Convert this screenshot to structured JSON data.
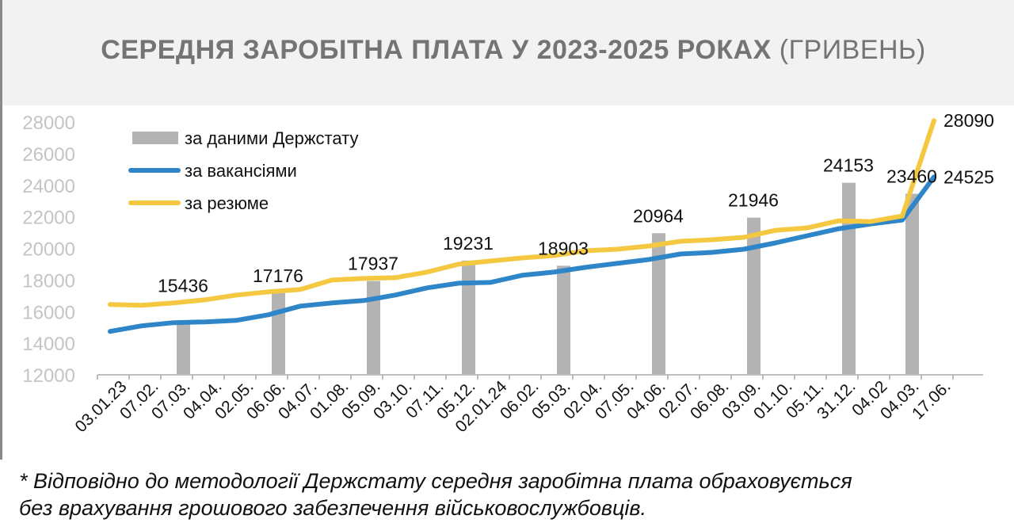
{
  "title": {
    "bold": "СЕРЕДНЯ ЗАРОБІТНА ПЛАТА У 2023-2025 РОКАХ",
    "thin": "(ГРИВЕНЬ)"
  },
  "footnote": {
    "line1": "* Відповідно до методології Держстату середня заробітна плата обраховується",
    "line2": "без врахування грошового забезпечення військовослужбовців."
  },
  "chart_data": {
    "type": "bar",
    "categories": [
      "03.01.23",
      "07.02.",
      "07.03.",
      "04.04.",
      "02.05.",
      "06.06.",
      "04.07.",
      "01.08.",
      "05.09.",
      "03.10.",
      "07.11.",
      "05.12.",
      "02.01.24",
      "06.02.",
      "05.03.",
      "02.04.",
      "07.05.",
      "04.06.",
      "02.07.",
      "06.08.",
      "03.09.",
      "01.10.",
      "05.11.",
      "31.12.",
      "04.02",
      "04.03.",
      "17.06."
    ],
    "ylim": [
      12000,
      28000
    ],
    "yticks": [
      12000,
      14000,
      16000,
      18000,
      20000,
      22000,
      24000,
      26000,
      28000
    ],
    "grid": false,
    "legend_position": "top-left",
    "series": [
      {
        "name": "за даними Держстату",
        "type": "bar",
        "color": "#b3b3b3",
        "values": [
          null,
          null,
          15436,
          null,
          null,
          17176,
          null,
          null,
          17937,
          null,
          null,
          19231,
          null,
          null,
          18903,
          null,
          null,
          20964,
          null,
          null,
          21946,
          null,
          null,
          24153,
          null,
          23460,
          null
        ]
      },
      {
        "name": "за вакансіями",
        "type": "line",
        "color": "#2e86c9",
        "values": [
          14750,
          15100,
          15300,
          15350,
          15450,
          15800,
          16350,
          16550,
          16700,
          17050,
          17500,
          17800,
          17850,
          18300,
          18500,
          18800,
          19050,
          19300,
          19650,
          19750,
          19950,
          20350,
          20800,
          21250,
          21550,
          21800,
          24525
        ]
      },
      {
        "name": "за резюме",
        "type": "line",
        "color": "#f5c842",
        "values": [
          16450,
          16400,
          16550,
          16750,
          17050,
          17250,
          17400,
          18000,
          18100,
          18150,
          18500,
          19000,
          19200,
          19400,
          19550,
          19850,
          19950,
          20150,
          20450,
          20550,
          20700,
          21150,
          21300,
          21750,
          21700,
          22050,
          28090
        ]
      }
    ],
    "data_labels": [
      {
        "index": 2,
        "text": "15436"
      },
      {
        "index": 5,
        "text": "17176"
      },
      {
        "index": 8,
        "text": "17937"
      },
      {
        "index": 11,
        "text": "19231"
      },
      {
        "index": 14,
        "text": "18903"
      },
      {
        "index": 17,
        "text": "20964"
      },
      {
        "index": 20,
        "text": "21946"
      },
      {
        "index": 23,
        "text": "24153"
      },
      {
        "index": 25,
        "text": "23460"
      }
    ],
    "end_labels": [
      {
        "series": 2,
        "text": "28090"
      },
      {
        "series": 1,
        "text": "24525"
      }
    ]
  }
}
